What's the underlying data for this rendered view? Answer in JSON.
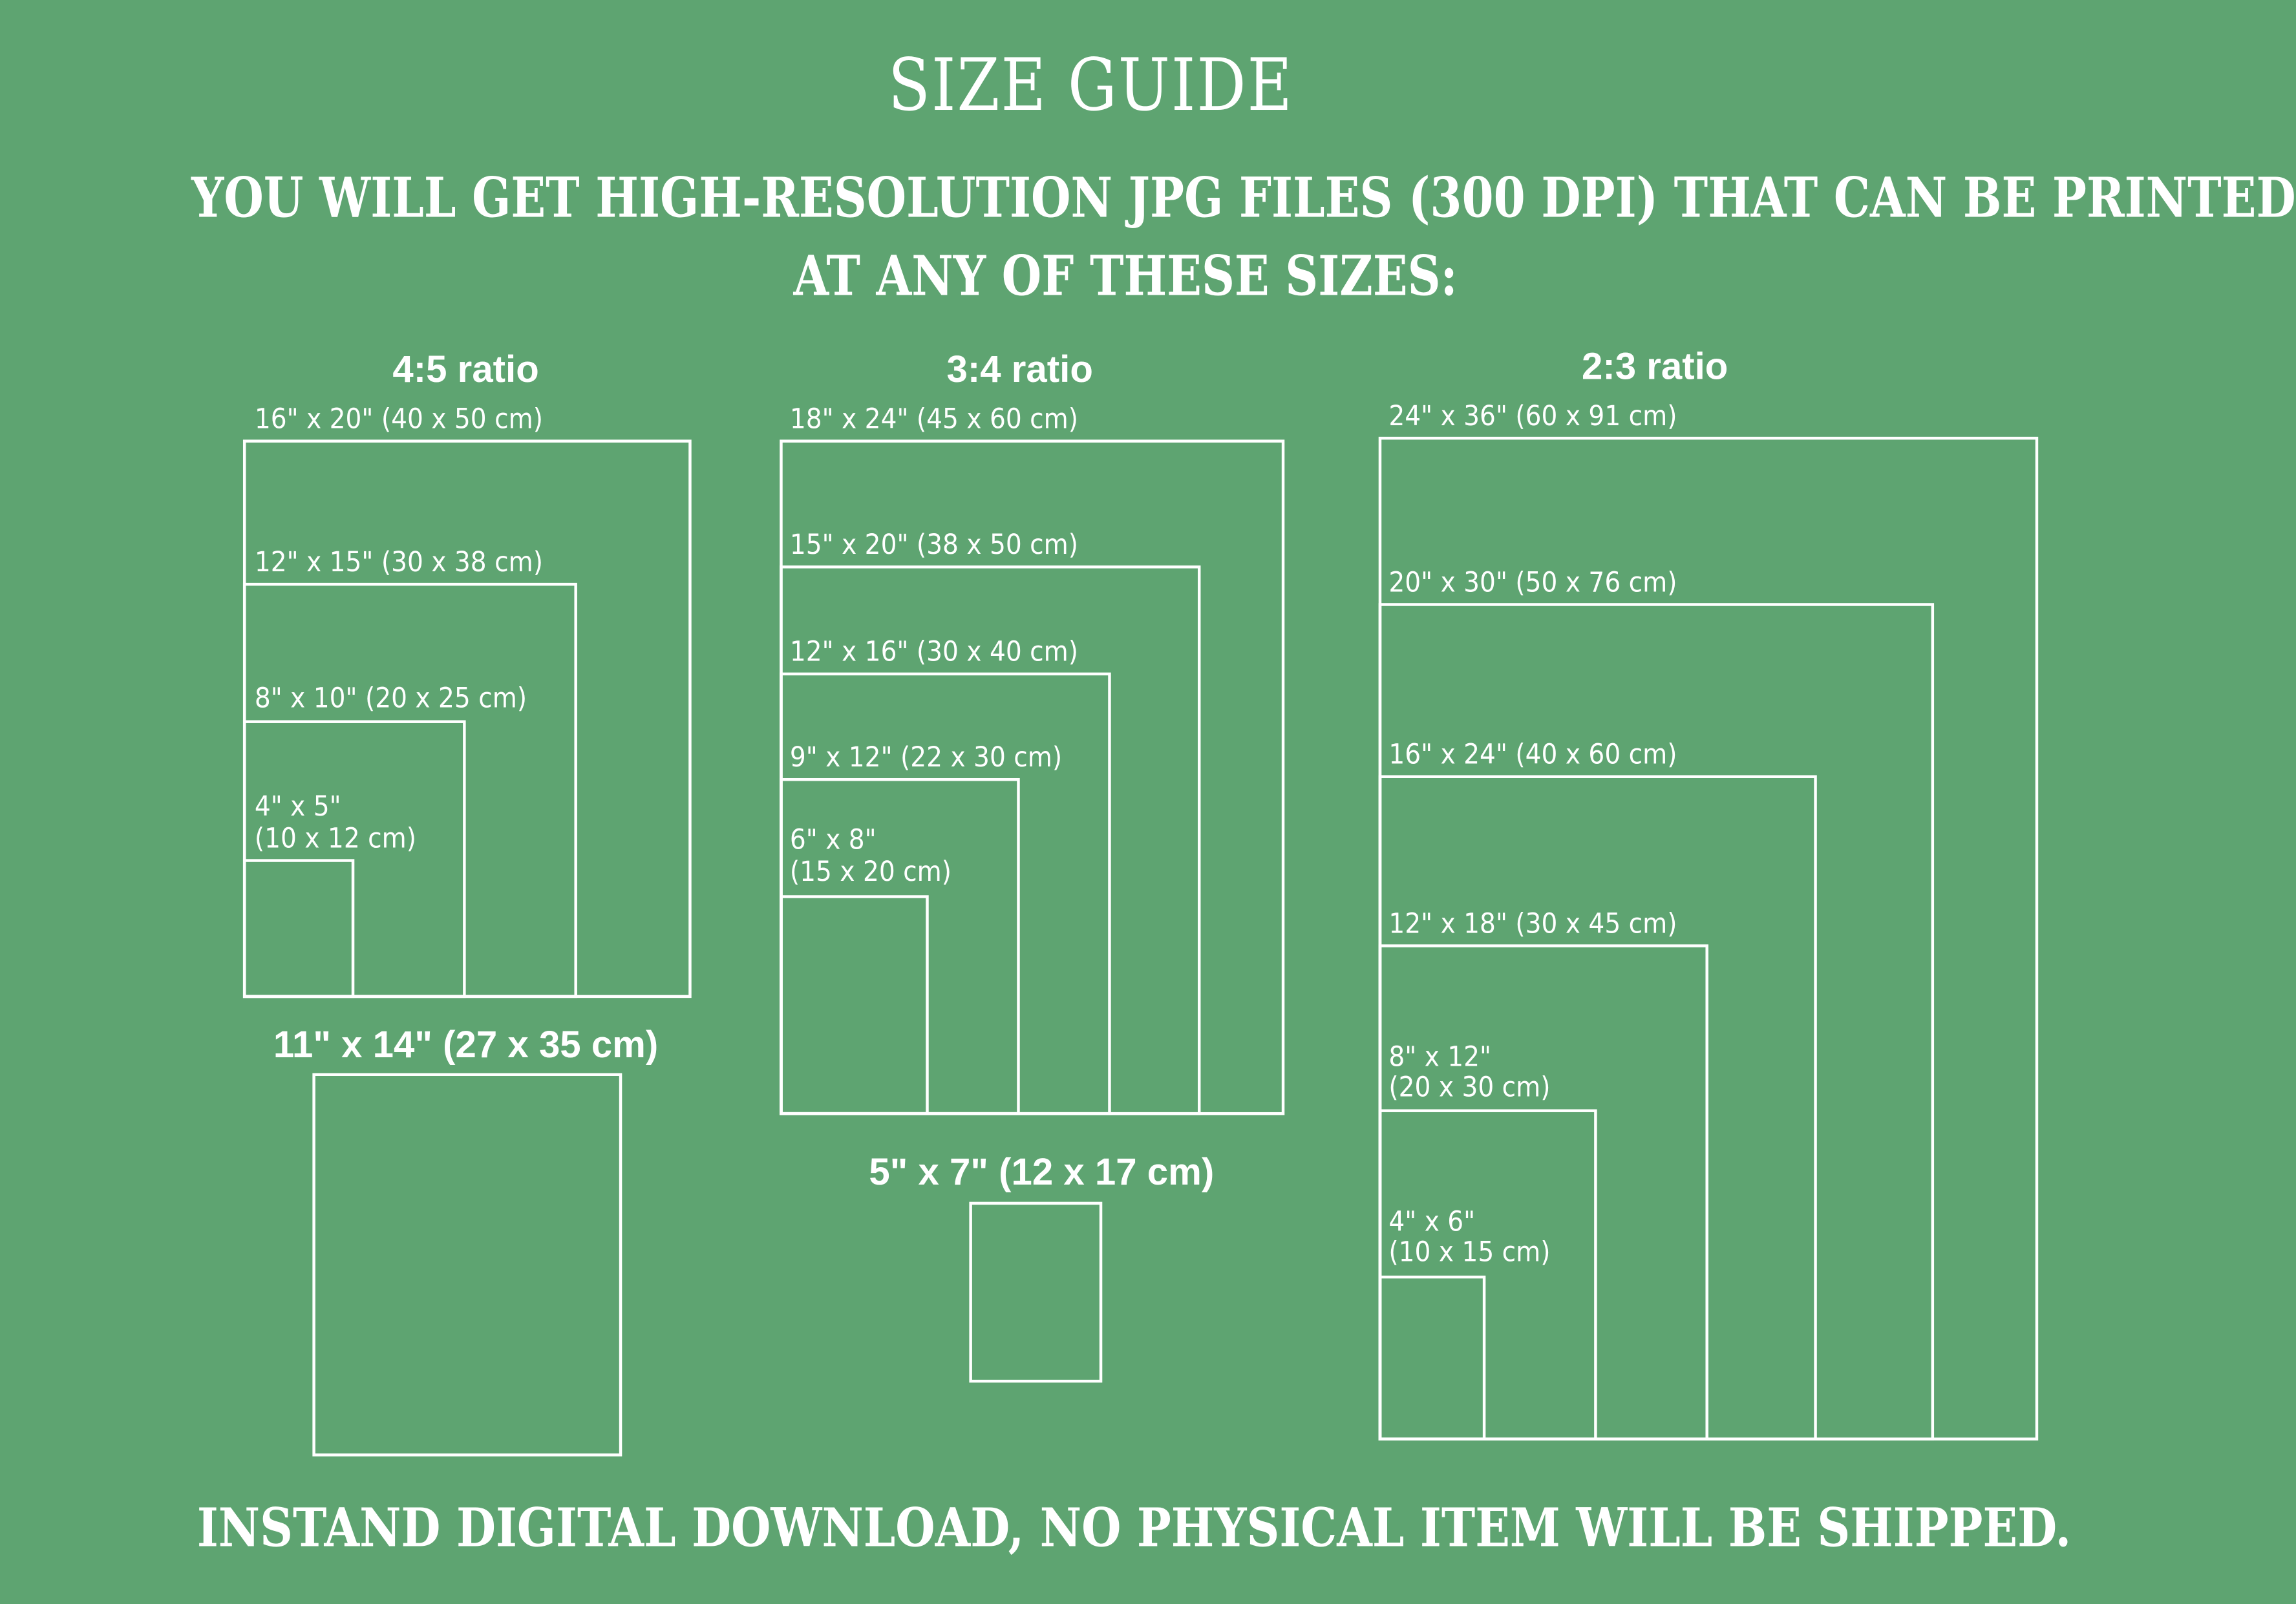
{
  "header": {
    "title": "SIZE GUIDE",
    "subtitle_line1": "YOU WILL GET HIGH-RESOLUTION JPG FILES (300 DPI) THAT CAN BE PRINTED",
    "subtitle_line2": "AT ANY OF THESE SIZES:"
  },
  "ratio_4_5": {
    "heading": "4:5 ratio",
    "sizes": [
      "16\" x 20\" (40 x 50 cm)",
      "12\" x 15\" (30 x 38 cm)",
      "8\" x 10\" (20 x 25 cm)",
      "4\" x 5\"",
      "(10 x 12 cm)"
    ]
  },
  "single_11_14": {
    "heading": "11\" x 14\" (27 x 35 cm)"
  },
  "ratio_3_4": {
    "heading": "3:4 ratio",
    "sizes": [
      "18\" x 24\" (45 x 60 cm)",
      "15\" x 20\" (38 x 50 cm)",
      "12\" x 16\" (30 x 40 cm)",
      "9\" x 12\" (22 x 30 cm)",
      "6\" x 8\"",
      "(15 x 20 cm)"
    ]
  },
  "single_5_7": {
    "heading": "5\" x 7\" (12 x 17 cm)"
  },
  "ratio_2_3": {
    "heading": "2:3 ratio",
    "sizes": [
      "24\" x 36\" (60 x 91 cm)",
      "20\" x 30\" (50 x 76 cm)",
      "16\" x 24\" (40 x 60 cm)",
      "12\" x 18\" (30 x 45 cm)",
      "8\" x 12\"",
      "(20 x 30 cm)",
      "4\" x 6\"",
      "(10 x 15 cm)"
    ]
  },
  "footer": {
    "text": "INSTAND DIGITAL DOWNLOAD, NO PHYSICAL ITEM WILL BE SHIPPED."
  },
  "colors": {
    "background": "#5ea471",
    "foreground": "#ffffff"
  }
}
